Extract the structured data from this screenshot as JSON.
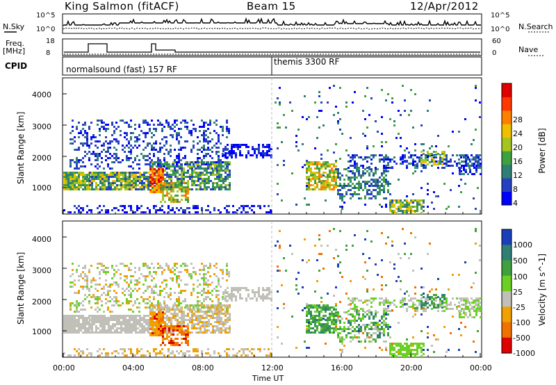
{
  "header": {
    "station": "King Salmon (fitACF)",
    "beam": "Beam 15",
    "date": "12/Apr/2012"
  },
  "noise_panel": {
    "left_label": "N.Sky",
    "right_label": "N.Search",
    "ticks_left": [
      "10^5",
      "10^0"
    ],
    "ticks_right": [
      "10^5",
      "10^0"
    ]
  },
  "freq_panel": {
    "left_label_1": "Freq.",
    "left_label_2": "[MHz]",
    "right_label": "Nave",
    "ticks_left": [
      "18",
      "8"
    ],
    "ticks_right": [
      "60",
      "0"
    ]
  },
  "cpid": {
    "label": "CPID",
    "modes": [
      {
        "name": "normalsound (fast) 157 RF"
      },
      {
        "name": "themis 3300 RF"
      }
    ]
  },
  "chart_data": [
    {
      "type": "heatmap",
      "title": "",
      "ylabel": "Slant Range [km]",
      "xlabel": "",
      "ylim": [
        200,
        4500
      ],
      "yticks": [
        "1000",
        "2000",
        "3000",
        "4000"
      ],
      "colorbar": {
        "label": "Power [dB]",
        "ticks": [
          "4",
          "8",
          "12",
          "16",
          "20",
          "24",
          "28"
        ],
        "colors": [
          "#0000ff",
          "#2540c0",
          "#2f7f74",
          "#3ea03e",
          "#a6c41f",
          "#f0c000",
          "#ff8000",
          "#ff3800",
          "#e00000"
        ]
      }
    },
    {
      "type": "heatmap",
      "title": "",
      "ylabel": "Slant Range [km]",
      "xlabel": "Time UT",
      "ylim": [
        200,
        4500
      ],
      "yticks": [
        "1000",
        "2000",
        "3000",
        "4000"
      ],
      "xticks": [
        "00:00",
        "04:00",
        "08:00",
        "12:00",
        "16:00",
        "20:00",
        "00:00"
      ],
      "colorbar": {
        "label": "Velocity [m s^-1]",
        "ticks": [
          "1000",
          "500",
          "100",
          "25",
          "-25",
          "-100",
          "-500",
          "-1000"
        ],
        "colors": [
          "#1a3fb8",
          "#2f7f74",
          "#3ea03e",
          "#6cd024",
          "#c0c0b8",
          "#f0a000",
          "#f07000",
          "#e00000"
        ]
      }
    }
  ]
}
